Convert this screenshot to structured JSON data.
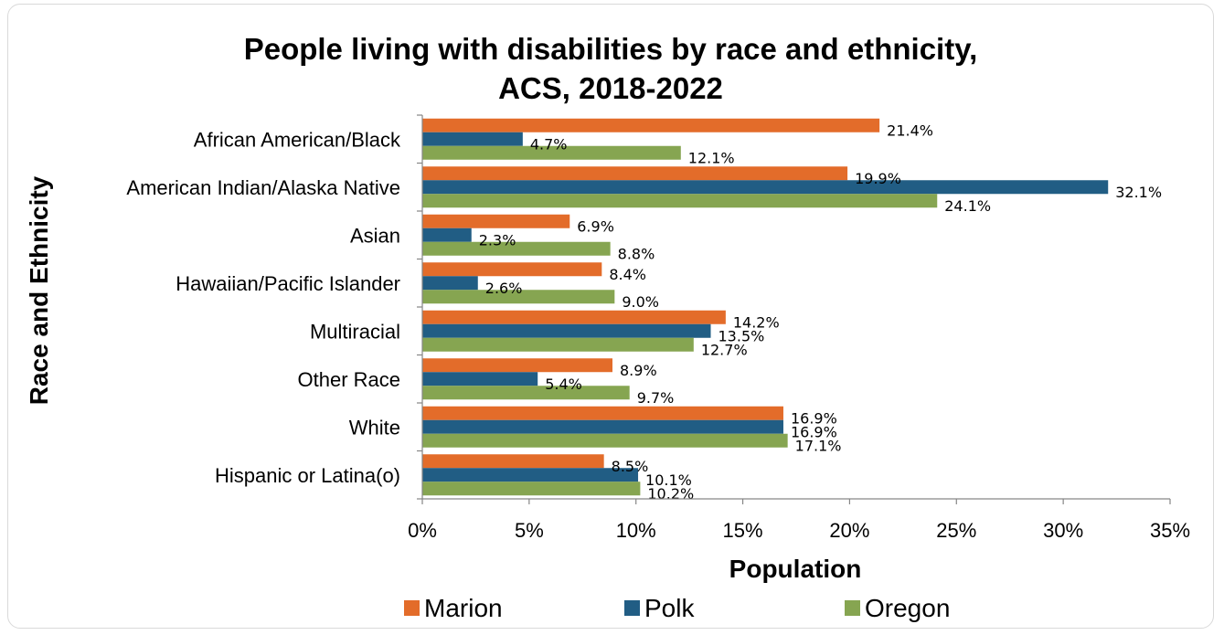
{
  "chart_data": {
    "type": "bar",
    "orientation": "horizontal",
    "title": "People living with disabilities by race and ethnicity, ACS, 2018-2022",
    "title_lines": [
      "People living with disabilities by race and ethnicity,",
      "ACS, 2018-2022"
    ],
    "xlabel": "Population",
    "ylabel": "Race and Ethnicity",
    "xlim": [
      0,
      35
    ],
    "x_ticks": [
      "0%",
      "5%",
      "10%",
      "15%",
      "20%",
      "25%",
      "30%",
      "35%"
    ],
    "x_tick_values": [
      0,
      5,
      10,
      15,
      20,
      25,
      30,
      35
    ],
    "categories": [
      "African American/Black",
      "American Indian/Alaska Native",
      "Asian",
      "Hawaiian/Pacific Islander",
      "Multiracial",
      "Other Race",
      "White",
      "Hispanic or Latina(o)"
    ],
    "series": [
      {
        "name": "Marion",
        "color": "#e36c2a",
        "values": [
          21.4,
          19.9,
          6.9,
          8.4,
          14.2,
          8.9,
          16.9,
          8.5
        ],
        "labels": [
          "21.4%",
          "19.9%",
          "6.9%",
          "8.4%",
          "14.2%",
          "8.9%",
          "16.9%",
          "8.5%"
        ]
      },
      {
        "name": "Polk",
        "color": "#215d84",
        "values": [
          4.7,
          32.1,
          2.3,
          2.6,
          13.5,
          5.4,
          16.9,
          10.1
        ],
        "labels": [
          "4.7%",
          "32.1%",
          "2.3%",
          "2.6%",
          "13.5%",
          "5.4%",
          "16.9%",
          "10.1%"
        ]
      },
      {
        "name": "Oregon",
        "color": "#86a551",
        "values": [
          12.1,
          24.1,
          8.8,
          9.0,
          12.7,
          9.7,
          17.1,
          10.2
        ],
        "labels": [
          "12.1%",
          "24.1%",
          "8.8%",
          "9.0%",
          "12.7%",
          "9.7%",
          "17.1%",
          "10.2%"
        ]
      }
    ],
    "grid": false,
    "legend_position": "bottom"
  }
}
